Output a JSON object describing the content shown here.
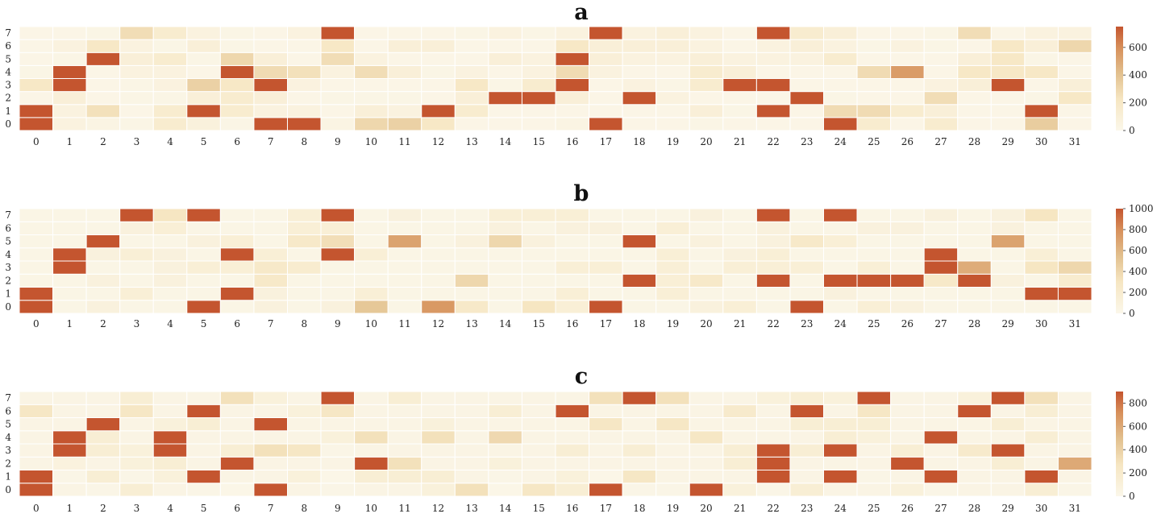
{
  "chart_data": [
    {
      "type": "heatmap",
      "title": "a",
      "x": [
        "0",
        "1",
        "2",
        "3",
        "4",
        "5",
        "6",
        "7",
        "8",
        "9",
        "10",
        "11",
        "12",
        "13",
        "14",
        "15",
        "16",
        "17",
        "18",
        "19",
        "20",
        "21",
        "22",
        "23",
        "24",
        "25",
        "26",
        "27",
        "28",
        "29",
        "30",
        "31"
      ],
      "y": [
        "0",
        "1",
        "2",
        "3",
        "4",
        "5",
        "6",
        "7"
      ],
      "colorbar": {
        "min": 0,
        "max": 750,
        "ticks": [
          0,
          200,
          400,
          600
        ]
      },
      "values": [
        [
          750,
          60,
          40,
          30,
          150,
          80,
          30,
          750,
          750,
          40,
          300,
          330,
          200,
          20,
          20,
          20,
          40,
          750,
          20,
          20,
          30,
          20,
          20,
          20,
          750,
          150,
          20,
          150,
          20,
          20,
          350,
          20
        ],
        [
          750,
          60,
          250,
          20,
          150,
          750,
          150,
          60,
          60,
          20,
          100,
          60,
          750,
          150,
          20,
          20,
          20,
          20,
          20,
          20,
          100,
          30,
          750,
          20,
          280,
          280,
          150,
          100,
          20,
          20,
          750,
          20
        ],
        [
          20,
          100,
          20,
          30,
          30,
          100,
          150,
          100,
          20,
          30,
          30,
          30,
          20,
          100,
          750,
          750,
          100,
          20,
          750,
          60,
          20,
          20,
          20,
          750,
          30,
          20,
          20,
          270,
          20,
          20,
          30,
          200
        ],
        [
          200,
          750,
          20,
          30,
          60,
          330,
          200,
          750,
          60,
          20,
          20,
          20,
          20,
          200,
          30,
          150,
          750,
          20,
          60,
          30,
          150,
          750,
          750,
          20,
          20,
          20,
          20,
          60,
          100,
          750,
          20,
          100
        ],
        [
          30,
          750,
          20,
          60,
          60,
          20,
          750,
          280,
          250,
          60,
          270,
          100,
          30,
          60,
          20,
          60,
          280,
          60,
          20,
          20,
          150,
          100,
          20,
          20,
          20,
          280,
          550,
          20,
          200,
          200,
          200,
          20
        ],
        [
          20,
          30,
          750,
          100,
          150,
          30,
          300,
          100,
          20,
          270,
          60,
          20,
          20,
          20,
          100,
          60,
          750,
          100,
          60,
          60,
          100,
          60,
          60,
          60,
          150,
          20,
          20,
          20,
          100,
          200,
          30,
          20
        ],
        [
          20,
          60,
          200,
          60,
          30,
          100,
          30,
          20,
          20,
          200,
          20,
          100,
          100,
          20,
          20,
          20,
          200,
          100,
          100,
          100,
          60,
          20,
          60,
          100,
          60,
          30,
          60,
          30,
          20,
          200,
          100,
          300
        ],
        [
          20,
          20,
          30,
          270,
          150,
          60,
          30,
          20,
          60,
          750,
          20,
          20,
          20,
          30,
          60,
          30,
          60,
          750,
          60,
          100,
          60,
          20,
          750,
          150,
          100,
          20,
          20,
          30,
          270,
          20,
          60,
          60
        ]
      ]
    },
    {
      "type": "heatmap",
      "title": "b",
      "x": [
        "0",
        "1",
        "2",
        "3",
        "4",
        "5",
        "6",
        "7",
        "8",
        "9",
        "10",
        "11",
        "12",
        "13",
        "14",
        "15",
        "16",
        "17",
        "18",
        "19",
        "20",
        "21",
        "22",
        "23",
        "24",
        "25",
        "26",
        "27",
        "28",
        "29",
        "30",
        "31"
      ],
      "y": [
        "0",
        "1",
        "2",
        "3",
        "4",
        "5",
        "6",
        "7"
      ],
      "colorbar": {
        "min": 0,
        "max": 1000,
        "ticks": [
          0,
          200,
          400,
          600,
          800,
          1000
        ]
      },
      "values": [
        [
          1000,
          40,
          100,
          40,
          40,
          1000,
          40,
          100,
          40,
          100,
          500,
          40,
          750,
          250,
          40,
          300,
          150,
          1000,
          40,
          40,
          100,
          150,
          40,
          1000,
          40,
          150,
          100,
          40,
          40,
          40,
          40,
          40
        ],
        [
          1000,
          40,
          40,
          150,
          40,
          40,
          1000,
          100,
          40,
          40,
          150,
          40,
          40,
          40,
          40,
          40,
          150,
          40,
          40,
          150,
          40,
          40,
          40,
          40,
          100,
          40,
          40,
          40,
          40,
          40,
          1000,
          1000
        ],
        [
          40,
          40,
          100,
          40,
          100,
          40,
          40,
          250,
          40,
          40,
          40,
          40,
          40,
          400,
          40,
          40,
          40,
          40,
          1000,
          150,
          250,
          40,
          1000,
          40,
          1000,
          1000,
          1000,
          250,
          1000,
          100,
          40,
          200
        ],
        [
          40,
          1000,
          40,
          40,
          100,
          150,
          150,
          250,
          200,
          40,
          40,
          40,
          40,
          40,
          40,
          40,
          150,
          150,
          40,
          150,
          40,
          150,
          150,
          150,
          40,
          150,
          40,
          1000,
          650,
          40,
          300,
          400
        ],
        [
          40,
          1000,
          100,
          150,
          100,
          40,
          1000,
          150,
          40,
          1000,
          150,
          40,
          40,
          40,
          40,
          40,
          40,
          40,
          40,
          150,
          40,
          100,
          150,
          40,
          40,
          40,
          40,
          1000,
          40,
          40,
          150,
          40
        ],
        [
          40,
          40,
          1000,
          40,
          40,
          100,
          150,
          40,
          250,
          350,
          40,
          700,
          40,
          100,
          400,
          100,
          40,
          40,
          1000,
          40,
          100,
          40,
          100,
          250,
          150,
          40,
          40,
          40,
          40,
          700,
          40,
          40
        ],
        [
          40,
          40,
          40,
          100,
          150,
          40,
          40,
          40,
          150,
          150,
          40,
          40,
          40,
          40,
          100,
          40,
          100,
          100,
          40,
          150,
          40,
          40,
          100,
          40,
          40,
          100,
          100,
          40,
          40,
          100,
          40,
          40
        ],
        [
          40,
          40,
          40,
          1000,
          300,
          1000,
          40,
          40,
          150,
          1000,
          40,
          100,
          40,
          40,
          150,
          150,
          150,
          40,
          40,
          40,
          100,
          40,
          1000,
          40,
          1000,
          40,
          40,
          100,
          40,
          100,
          300,
          40
        ]
      ]
    },
    {
      "type": "heatmap",
      "title": "c",
      "x": [
        "0",
        "1",
        "2",
        "3",
        "4",
        "5",
        "6",
        "7",
        "8",
        "9",
        "10",
        "11",
        "12",
        "13",
        "14",
        "15",
        "16",
        "17",
        "18",
        "19",
        "20",
        "21",
        "22",
        "23",
        "24",
        "25",
        "26",
        "27",
        "28",
        "29",
        "30",
        "31"
      ],
      "y": [
        "0",
        "1",
        "2",
        "3",
        "4",
        "5",
        "6",
        "7"
      ],
      "colorbar": {
        "min": 0,
        "max": 900,
        "ticks": [
          0,
          200,
          400,
          600,
          800
        ]
      },
      "values": [
        [
          900,
          40,
          30,
          150,
          40,
          30,
          20,
          900,
          40,
          30,
          40,
          40,
          100,
          300,
          20,
          250,
          150,
          900,
          30,
          30,
          900,
          100,
          30,
          150,
          40,
          40,
          100,
          30,
          40,
          40,
          150,
          30
        ],
        [
          900,
          30,
          150,
          30,
          100,
          900,
          40,
          40,
          100,
          20,
          150,
          150,
          150,
          40,
          30,
          40,
          100,
          20,
          250,
          40,
          40,
          40,
          900,
          40,
          900,
          30,
          40,
          900,
          40,
          40,
          900,
          40
        ],
        [
          40,
          80,
          40,
          100,
          150,
          40,
          900,
          40,
          40,
          40,
          900,
          300,
          40,
          40,
          100,
          40,
          40,
          40,
          40,
          40,
          40,
          150,
          900,
          40,
          40,
          40,
          900,
          40,
          40,
          150,
          40,
          600
        ],
        [
          40,
          900,
          150,
          100,
          900,
          40,
          150,
          300,
          250,
          30,
          40,
          40,
          40,
          40,
          40,
          40,
          150,
          40,
          150,
          40,
          40,
          150,
          900,
          150,
          900,
          40,
          150,
          40,
          200,
          900,
          40,
          40
        ],
        [
          40,
          900,
          150,
          40,
          900,
          40,
          40,
          40,
          40,
          100,
          300,
          40,
          300,
          40,
          350,
          40,
          40,
          40,
          40,
          40,
          250,
          40,
          40,
          40,
          150,
          100,
          40,
          900,
          40,
          40,
          150,
          40
        ],
        [
          40,
          40,
          900,
          40,
          100,
          150,
          40,
          900,
          40,
          40,
          40,
          40,
          100,
          40,
          40,
          40,
          40,
          250,
          40,
          250,
          40,
          40,
          40,
          150,
          150,
          150,
          40,
          40,
          40,
          150,
          40,
          40
        ],
        [
          250,
          40,
          40,
          250,
          40,
          900,
          40,
          40,
          100,
          250,
          40,
          40,
          40,
          40,
          150,
          40,
          900,
          40,
          40,
          40,
          40,
          200,
          40,
          900,
          40,
          250,
          40,
          40,
          900,
          40,
          150,
          40
        ],
        [
          40,
          40,
          40,
          150,
          40,
          40,
          300,
          100,
          40,
          900,
          40,
          150,
          40,
          40,
          40,
          40,
          40,
          300,
          900,
          300,
          40,
          40,
          100,
          150,
          100,
          900,
          40,
          40,
          100,
          900,
          300,
          40
        ]
      ]
    }
  ]
}
